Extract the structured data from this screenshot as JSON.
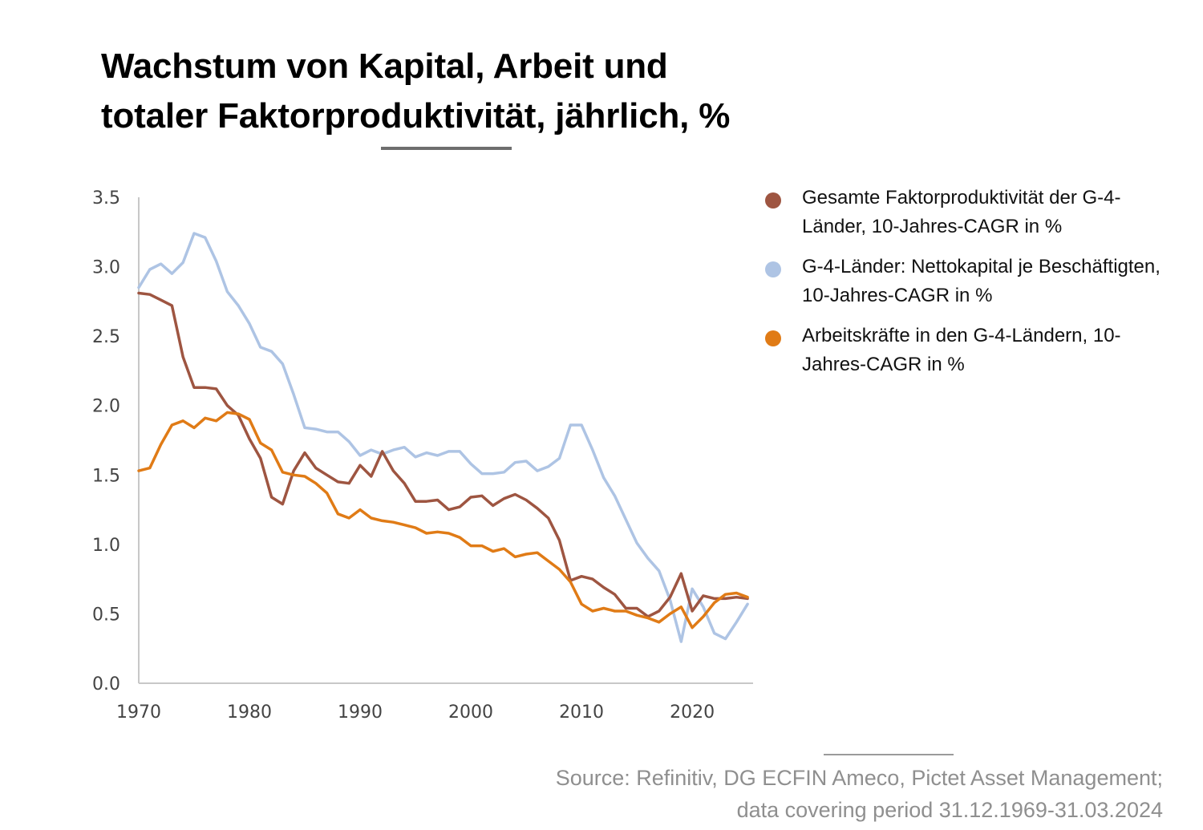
{
  "header": {
    "title_line1": "Wachstum von Kapital, Arbeit und",
    "title_line2": "totaler Faktorproduktivität, jährlich, %"
  },
  "footer": {
    "source_line1": "Source: Refinitiv, DG ECFIN Ameco, Pictet Asset Management;",
    "source_line2": "data covering period 31.12.1969-31.03.2024"
  },
  "chart_data": {
    "type": "line",
    "title": "Wachstum von Kapital, Arbeit und totaler Faktorproduktivität, jährlich, %",
    "xlabel": "",
    "ylabel": "",
    "xlim": [
      1970,
      2025.5
    ],
    "ylim": [
      0,
      3.5
    ],
    "xticks": [
      1970,
      1980,
      1990,
      2000,
      2010,
      2020
    ],
    "yticks": [
      0.0,
      0.5,
      1.0,
      1.5,
      2.0,
      2.5,
      3.0,
      3.5
    ],
    "ytick_labels": [
      "0.0",
      "0.5",
      "1.0",
      "1.5",
      "2.0",
      "2.5",
      "3.0",
      "3.5"
    ],
    "grid": false,
    "legend_position": "top-right",
    "series": [
      {
        "name": "Gesamte Faktorproduktivität der G-4-Länder, 10-Jahres-CAGR in %",
        "color": "#9e5541",
        "x": [
          1970,
          1971,
          1972,
          1973,
          1974,
          1975,
          1976,
          1977,
          1978,
          1979,
          1980,
          1981,
          1982,
          1983,
          1984,
          1985,
          1986,
          1987,
          1988,
          1989,
          1990,
          1991,
          1992,
          1993,
          1994,
          1995,
          1996,
          1997,
          1998,
          1999,
          2000,
          2001,
          2002,
          2003,
          2004,
          2005,
          2006,
          2007,
          2008,
          2009,
          2010,
          2011,
          2012,
          2013,
          2014,
          2015,
          2016,
          2017,
          2018,
          2019,
          2020,
          2021,
          2022,
          2023,
          2024,
          2025
        ],
        "values": [
          2.81,
          2.8,
          2.76,
          2.72,
          2.35,
          2.13,
          2.13,
          2.12,
          2.0,
          1.93,
          1.76,
          1.62,
          1.34,
          1.29,
          1.53,
          1.66,
          1.55,
          1.5,
          1.45,
          1.44,
          1.57,
          1.49,
          1.67,
          1.53,
          1.44,
          1.31,
          1.31,
          1.32,
          1.25,
          1.27,
          1.34,
          1.35,
          1.28,
          1.33,
          1.36,
          1.32,
          1.26,
          1.19,
          1.03,
          0.74,
          0.77,
          0.75,
          0.69,
          0.64,
          0.54,
          0.54,
          0.48,
          0.52,
          0.62,
          0.79,
          0.52,
          0.63,
          0.61,
          0.61,
          0.62,
          0.61
        ]
      },
      {
        "name": "G-4-Länder: Nettokapital je Beschäftigten, 10-Jahres-CAGR in %",
        "color": "#aec4e4",
        "x": [
          1970,
          1971,
          1972,
          1973,
          1974,
          1975,
          1976,
          1977,
          1978,
          1979,
          1980,
          1981,
          1982,
          1983,
          1984,
          1985,
          1986,
          1987,
          1988,
          1989,
          1990,
          1991,
          1992,
          1993,
          1994,
          1995,
          1996,
          1997,
          1998,
          1999,
          2000,
          2001,
          2002,
          2003,
          2004,
          2005,
          2006,
          2007,
          2008,
          2009,
          2010,
          2011,
          2012,
          2013,
          2014,
          2015,
          2016,
          2017,
          2018,
          2019,
          2020,
          2021,
          2022,
          2023,
          2024,
          2025
        ],
        "values": [
          2.85,
          2.98,
          3.02,
          2.95,
          3.03,
          3.24,
          3.21,
          3.04,
          2.82,
          2.72,
          2.59,
          2.42,
          2.39,
          2.3,
          2.08,
          1.84,
          1.83,
          1.81,
          1.81,
          1.74,
          1.64,
          1.68,
          1.65,
          1.68,
          1.7,
          1.63,
          1.66,
          1.64,
          1.67,
          1.67,
          1.58,
          1.51,
          1.51,
          1.52,
          1.59,
          1.6,
          1.53,
          1.56,
          1.62,
          1.86,
          1.86,
          1.68,
          1.48,
          1.35,
          1.18,
          1.01,
          0.9,
          0.81,
          0.6,
          0.3,
          0.68,
          0.55,
          0.36,
          0.32,
          0.44,
          0.57
        ]
      },
      {
        "name": "Arbeitskräfte in den G-4-Ländern, 10-Jahres-CAGR in %",
        "color": "#e07b16",
        "x": [
          1970,
          1971,
          1972,
          1973,
          1974,
          1975,
          1976,
          1977,
          1978,
          1979,
          1980,
          1981,
          1982,
          1983,
          1984,
          1985,
          1986,
          1987,
          1988,
          1989,
          1990,
          1991,
          1992,
          1993,
          1994,
          1995,
          1996,
          1997,
          1998,
          1999,
          2000,
          2001,
          2002,
          2003,
          2004,
          2005,
          2006,
          2007,
          2008,
          2009,
          2010,
          2011,
          2012,
          2013,
          2014,
          2015,
          2016,
          2017,
          2018,
          2019,
          2020,
          2021,
          2022,
          2023,
          2024,
          2025
        ],
        "values": [
          1.53,
          1.55,
          1.72,
          1.86,
          1.89,
          1.84,
          1.91,
          1.89,
          1.95,
          1.94,
          1.9,
          1.73,
          1.68,
          1.52,
          1.5,
          1.49,
          1.44,
          1.37,
          1.22,
          1.19,
          1.25,
          1.19,
          1.17,
          1.16,
          1.14,
          1.12,
          1.08,
          1.09,
          1.08,
          1.05,
          0.99,
          0.99,
          0.95,
          0.97,
          0.91,
          0.93,
          0.94,
          0.88,
          0.82,
          0.73,
          0.57,
          0.52,
          0.54,
          0.52,
          0.52,
          0.49,
          0.47,
          0.44,
          0.5,
          0.55,
          0.4,
          0.48,
          0.58,
          0.64,
          0.65,
          0.62
        ]
      }
    ]
  }
}
